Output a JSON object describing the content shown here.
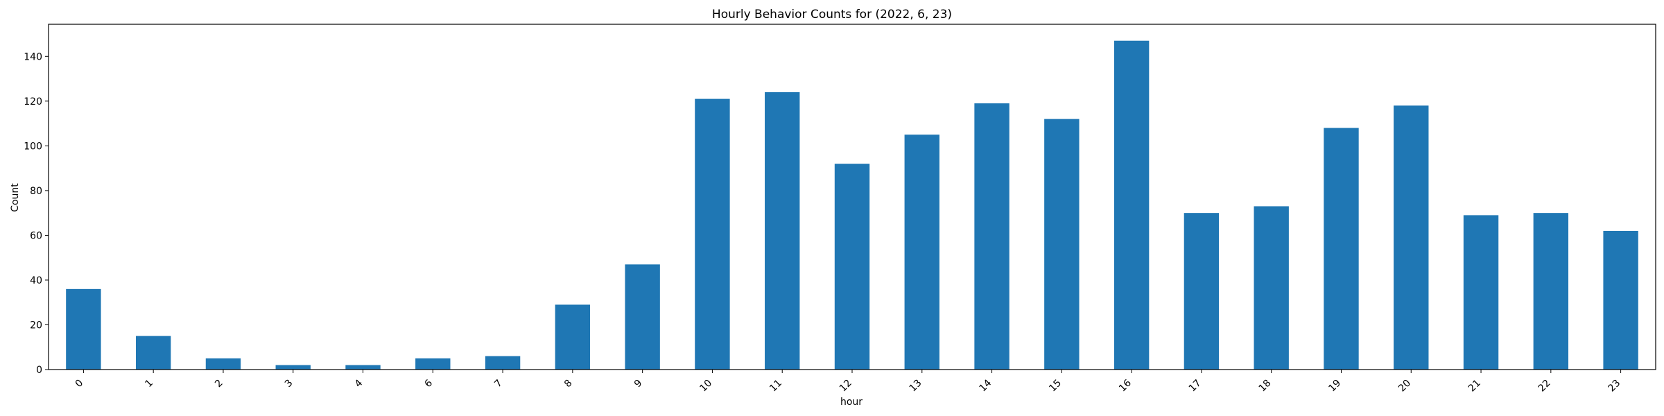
{
  "chart_data": {
    "type": "bar",
    "title": "Hourly Behavior Counts for (2022, 6, 23)",
    "xlabel": "hour",
    "ylabel": "Count",
    "categories": [
      "0",
      "1",
      "2",
      "3",
      "4",
      "6",
      "7",
      "8",
      "9",
      "10",
      "11",
      "12",
      "13",
      "14",
      "15",
      "16",
      "17",
      "18",
      "19",
      "20",
      "21",
      "22",
      "23"
    ],
    "values": [
      36,
      15,
      5,
      2,
      2,
      5,
      6,
      29,
      47,
      121,
      124,
      92,
      105,
      119,
      112,
      147,
      70,
      73,
      108,
      118,
      69,
      70,
      62
    ],
    "ylim": [
      0,
      154.35
    ],
    "yticks": [
      0,
      20,
      40,
      60,
      80,
      100,
      120,
      140
    ],
    "bar_color": "#1f77b4",
    "grid": false,
    "legend": "none",
    "x_tick_rotation": 45
  }
}
